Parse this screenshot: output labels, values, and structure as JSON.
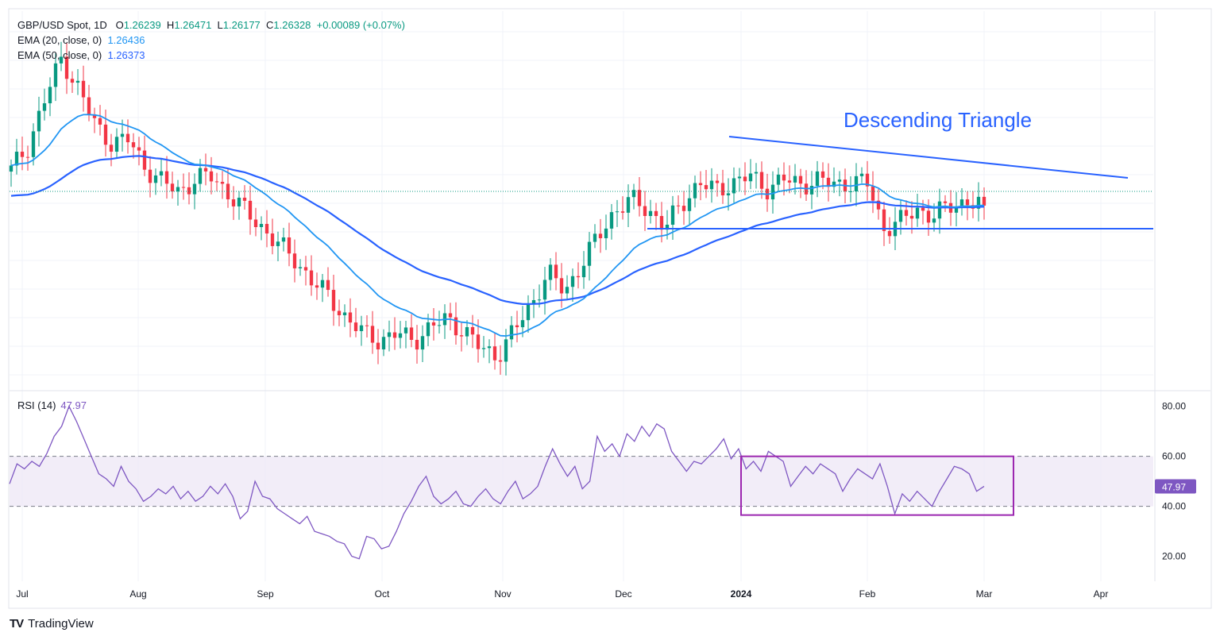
{
  "header": {
    "symbol": "GBP/USD Spot, 1D",
    "ohlc": {
      "o_label": "O",
      "o": "1.26239",
      "h_label": "H",
      "h": "1.26471",
      "l_label": "L",
      "l": "1.26177",
      "c_label": "C",
      "c": "1.26328",
      "change": "+0.00089 (+0.07%)"
    },
    "ema20_label": "EMA (20, close, 0)",
    "ema20_value": "1.26436",
    "ema50_label": "EMA (50, close, 0)",
    "ema50_value": "1.26373"
  },
  "annotation": {
    "text": "Descending Triangle",
    "color": "#2962ff"
  },
  "rsi": {
    "label": "RSI (14)",
    "value": "47.97",
    "axis_ticks": [
      "80.00",
      "60.00",
      "40.00",
      "20.00"
    ],
    "current_badge": "47.97"
  },
  "brand": {
    "name": "TradingView",
    "logo_text": "TV"
  },
  "colors": {
    "up": "#089981",
    "down": "#f23645",
    "ema20": "#2196f3",
    "ema50": "#2962ff",
    "rsi_line": "#7e57c2",
    "rsi_band": "#ede7f6",
    "box": "#9c27b0",
    "trend": "#2962ff"
  },
  "chart_data": [
    {
      "type": "candlestick",
      "series_name": "GBP/USD Spot, 1D",
      "x_axis_labels": [
        "Jul",
        "Aug",
        "Sep",
        "Oct",
        "Nov",
        "Dec",
        "2024",
        "Feb",
        "Mar",
        "Apr"
      ],
      "approx_closes_by_month": {
        "Jul": [
          1.275,
          1.283,
          1.298,
          1.312,
          1.302,
          1.29,
          1.284,
          1.285
        ],
        "Aug": [
          1.276,
          1.271,
          1.268,
          1.272,
          1.273,
          1.267,
          1.261,
          1.256
        ],
        "Sep": [
          1.25,
          1.245,
          1.238,
          1.233,
          1.226,
          1.221,
          1.219
        ],
        "Oct": [
          1.221,
          1.219,
          1.223,
          1.226,
          1.222,
          1.216,
          1.214
        ],
        "Nov": [
          1.222,
          1.231,
          1.241,
          1.235,
          1.244,
          1.253,
          1.262,
          1.265
        ],
        "Dec": [
          1.262,
          1.256,
          1.264,
          1.271,
          1.268,
          1.271,
          1.273
        ],
        "Jan": [
          1.269,
          1.272,
          1.27,
          1.272,
          1.27,
          1.271,
          1.271
        ],
        "Feb": [
          1.256,
          1.258,
          1.262,
          1.26,
          1.263,
          1.265,
          1.263
        ]
      },
      "series": [
        {
          "name": "EMA (20, close, 0)",
          "last": 1.26436
        },
        {
          "name": "EMA (50, close, 0)",
          "last": 1.26373
        }
      ],
      "annotations": [
        "Descending Triangle"
      ]
    },
    {
      "type": "line",
      "series_name": "RSI (14)",
      "ylim": [
        10,
        85
      ],
      "y_ticks": [
        80,
        60,
        40,
        20
      ],
      "levels": [
        60,
        40
      ],
      "approx_values": [
        49,
        57,
        55,
        58,
        56,
        61,
        68,
        72,
        80,
        74,
        67,
        60,
        53,
        51,
        48,
        56,
        50,
        47,
        42,
        44,
        47,
        45,
        48,
        43,
        46,
        42,
        44,
        48,
        45,
        49,
        44,
        35,
        38,
        50,
        44,
        43,
        39,
        37,
        35,
        33,
        36,
        30,
        29,
        28,
        26,
        25,
        20,
        19,
        28,
        27,
        23,
        24,
        30,
        37,
        42,
        48,
        52,
        44,
        41,
        43,
        46,
        41,
        40,
        44,
        47,
        43,
        41,
        46,
        50,
        43,
        45,
        48,
        56,
        63,
        57,
        52,
        56,
        47,
        50,
        68,
        62,
        65,
        60,
        69,
        66,
        72,
        68,
        73,
        71,
        62,
        58,
        54,
        58,
        57,
        60,
        63,
        67,
        59,
        63,
        55,
        58,
        54,
        62,
        60,
        58,
        48,
        52,
        56,
        53,
        57,
        55,
        53,
        46,
        51,
        55,
        53,
        51,
        57,
        48,
        37,
        45,
        42,
        46,
        43,
        40,
        46,
        51,
        56,
        55,
        53,
        46,
        48
      ],
      "last": 47.97
    }
  ]
}
